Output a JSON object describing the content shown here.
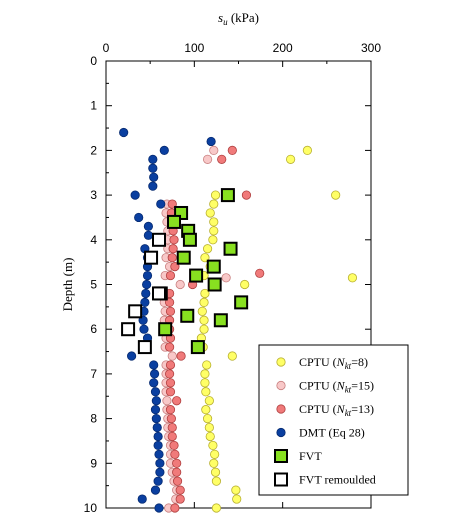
{
  "chart_data": {
    "type": "scatter",
    "xlabel": {
      "base": "s",
      "sub": "u",
      "unit": " (kPa)"
    },
    "ylabel": "Depth (m)",
    "xlim": [
      0,
      300
    ],
    "ylim": [
      0,
      10
    ],
    "x_ticks": [
      0,
      100,
      200,
      300
    ],
    "y_ticks": [
      0,
      1,
      2,
      3,
      4,
      5,
      6,
      7,
      8,
      9,
      10
    ],
    "x_axis_position": "top",
    "y_inverted": true,
    "grid": false,
    "legend_position": "bottom-right",
    "series": [
      {
        "name": "CPTU (Nkt=8)",
        "legend": {
          "pre": "CPTU (",
          "var": "N",
          "sub": "kt",
          "post": "=8)"
        },
        "marker": "circle",
        "fill": "#ffff66",
        "stroke": "#b8b030",
        "points": [
          [
            228,
            2.0
          ],
          [
            209,
            2.2
          ],
          [
            260,
            3.0
          ],
          [
            124,
            3.0
          ],
          [
            122,
            3.2
          ],
          [
            118,
            3.4
          ],
          [
            122,
            3.6
          ],
          [
            122,
            3.8
          ],
          [
            121,
            4.0
          ],
          [
            115,
            4.2
          ],
          [
            112,
            4.4
          ],
          [
            118,
            4.6
          ],
          [
            111,
            4.8
          ],
          [
            157,
            5.0
          ],
          [
            112,
            5.2
          ],
          [
            111,
            5.4
          ],
          [
            109,
            5.6
          ],
          [
            111,
            5.8
          ],
          [
            111,
            6.0
          ],
          [
            108,
            6.2
          ],
          [
            110,
            6.4
          ],
          [
            143,
            6.6
          ],
          [
            114,
            6.8
          ],
          [
            112,
            7.0
          ],
          [
            112,
            7.2
          ],
          [
            113,
            7.4
          ],
          [
            117,
            7.6
          ],
          [
            113,
            7.8
          ],
          [
            115,
            8.0
          ],
          [
            117,
            8.2
          ],
          [
            118,
            8.4
          ],
          [
            121,
            8.6
          ],
          [
            123,
            8.8
          ],
          [
            122,
            9.0
          ],
          [
            124,
            9.2
          ],
          [
            125,
            9.4
          ],
          [
            147,
            9.6
          ],
          [
            148,
            9.8
          ],
          [
            125,
            10.0
          ],
          [
            279,
            4.85
          ]
        ]
      },
      {
        "name": "CPTU (Nkt=15)",
        "legend": {
          "pre": "CPTU (",
          "var": "N",
          "sub": "kt",
          "post": "=15)"
        },
        "marker": "circle",
        "fill": "#f8c8c8",
        "stroke": "#c98080",
        "points": [
          [
            122,
            2.0
          ],
          [
            115,
            2.2
          ],
          [
            69,
            3.2
          ],
          [
            68,
            3.4
          ],
          [
            69,
            3.6
          ],
          [
            70,
            3.8
          ],
          [
            70,
            4.0
          ],
          [
            70,
            4.2
          ],
          [
            68,
            4.4
          ],
          [
            72,
            4.6
          ],
          [
            67,
            4.8
          ],
          [
            84,
            5.0
          ],
          [
            65,
            5.2
          ],
          [
            66,
            5.4
          ],
          [
            67,
            5.6
          ],
          [
            66,
            5.8
          ],
          [
            66,
            6.0
          ],
          [
            68,
            6.2
          ],
          [
            67,
            6.4
          ],
          [
            75,
            6.6
          ],
          [
            68,
            6.8
          ],
          [
            68,
            7.0
          ],
          [
            68,
            7.2
          ],
          [
            68,
            7.4
          ],
          [
            69,
            7.6
          ],
          [
            69,
            7.8
          ],
          [
            70,
            8.0
          ],
          [
            70,
            8.2
          ],
          [
            71,
            8.4
          ],
          [
            73,
            8.6
          ],
          [
            73,
            8.8
          ],
          [
            73,
            9.0
          ],
          [
            75,
            9.2
          ],
          [
            77,
            9.4
          ],
          [
            80,
            9.6
          ],
          [
            79,
            9.8
          ],
          [
            71,
            10.0
          ],
          [
            136,
            4.85
          ]
        ]
      },
      {
        "name": "CPTU (Nkt=13)",
        "legend": {
          "pre": "CPTU (",
          "var": "N",
          "sub": "kt",
          "post": "=13)"
        },
        "marker": "circle",
        "fill": "#f07a7a",
        "stroke": "#b04040",
        "points": [
          [
            143,
            2.0
          ],
          [
            131,
            2.2
          ],
          [
            159,
            3.0
          ],
          [
            75,
            3.2
          ],
          [
            74,
            3.4
          ],
          [
            75,
            3.6
          ],
          [
            76,
            3.8
          ],
          [
            77,
            4.0
          ],
          [
            76,
            4.2
          ],
          [
            75,
            4.4
          ],
          [
            78,
            4.6
          ],
          [
            73,
            4.8
          ],
          [
            98,
            5.0
          ],
          [
            72,
            5.2
          ],
          [
            72,
            5.4
          ],
          [
            73,
            5.6
          ],
          [
            72,
            5.8
          ],
          [
            72,
            6.0
          ],
          [
            73,
            6.2
          ],
          [
            72,
            6.4
          ],
          [
            85,
            6.6
          ],
          [
            73,
            6.8
          ],
          [
            72,
            7.0
          ],
          [
            73,
            7.2
          ],
          [
            73,
            7.4
          ],
          [
            80,
            7.6
          ],
          [
            73,
            7.8
          ],
          [
            74,
            8.0
          ],
          [
            75,
            8.2
          ],
          [
            75,
            8.4
          ],
          [
            77,
            8.6
          ],
          [
            78,
            8.8
          ],
          [
            80,
            9.0
          ],
          [
            80,
            9.2
          ],
          [
            81,
            9.4
          ],
          [
            84,
            9.6
          ],
          [
            84,
            9.8
          ],
          [
            78,
            10.0
          ],
          [
            174,
            4.75
          ]
        ]
      },
      {
        "name": "DMT (Eq 28)",
        "legend": {
          "pre": "DMT (Eq 28)",
          "var": "",
          "sub": "",
          "post": ""
        },
        "marker": "circle",
        "fill": "#0a3fa0",
        "stroke": "#062a70",
        "points": [
          [
            20,
            1.6
          ],
          [
            119,
            1.8
          ],
          [
            66,
            2.0
          ],
          [
            53,
            2.2
          ],
          [
            53,
            2.4
          ],
          [
            54,
            2.6
          ],
          [
            53,
            2.8
          ],
          [
            33,
            3.0
          ],
          [
            62,
            3.2
          ],
          [
            37,
            3.5
          ],
          [
            48,
            3.7
          ],
          [
            48,
            3.9
          ],
          [
            44,
            4.2
          ],
          [
            47,
            4.4
          ],
          [
            47,
            4.6
          ],
          [
            47,
            4.8
          ],
          [
            46,
            5.0
          ],
          [
            45,
            5.2
          ],
          [
            44,
            5.4
          ],
          [
            43,
            5.6
          ],
          [
            42,
            5.8
          ],
          [
            43,
            6.0
          ],
          [
            47,
            6.2
          ],
          [
            43,
            6.4
          ],
          [
            29,
            6.6
          ],
          [
            54,
            6.8
          ],
          [
            55,
            7.0
          ],
          [
            54,
            7.2
          ],
          [
            56,
            7.4
          ],
          [
            57,
            7.6
          ],
          [
            56,
            7.8
          ],
          [
            57,
            8.0
          ],
          [
            58,
            8.2
          ],
          [
            59,
            8.4
          ],
          [
            59,
            8.6
          ],
          [
            60,
            8.8
          ],
          [
            61,
            9.0
          ],
          [
            61,
            9.2
          ],
          [
            59,
            9.4
          ],
          [
            56,
            9.6
          ],
          [
            41,
            9.8
          ],
          [
            60,
            10.0
          ]
        ]
      },
      {
        "name": "FVT",
        "legend": {
          "pre": "FVT",
          "var": "",
          "sub": "",
          "post": ""
        },
        "marker": "square",
        "fill": "#88e020",
        "stroke": "#000000",
        "points": [
          [
            138,
            3.0
          ],
          [
            85,
            3.4
          ],
          [
            77,
            3.6
          ],
          [
            93,
            3.8
          ],
          [
            95,
            4.0
          ],
          [
            141,
            4.2
          ],
          [
            88,
            4.4
          ],
          [
            122,
            4.6
          ],
          [
            102,
            4.8
          ],
          [
            123,
            5.0
          ],
          [
            153,
            5.4
          ],
          [
            92,
            5.7
          ],
          [
            130,
            5.8
          ],
          [
            67,
            6.0
          ],
          [
            104,
            6.4
          ],
          [
            62,
            5.2
          ]
        ]
      },
      {
        "name": "FVT remoulded",
        "legend": {
          "pre": "FVT remoulded",
          "var": "",
          "sub": "",
          "post": ""
        },
        "marker": "square",
        "fill": "#ffffff",
        "stroke": "#000000",
        "points": [
          [
            60,
            4.0
          ],
          [
            51,
            4.4
          ],
          [
            60,
            5.2
          ],
          [
            33,
            5.6
          ],
          [
            25,
            6.0
          ],
          [
            44,
            6.4
          ]
        ]
      }
    ]
  }
}
